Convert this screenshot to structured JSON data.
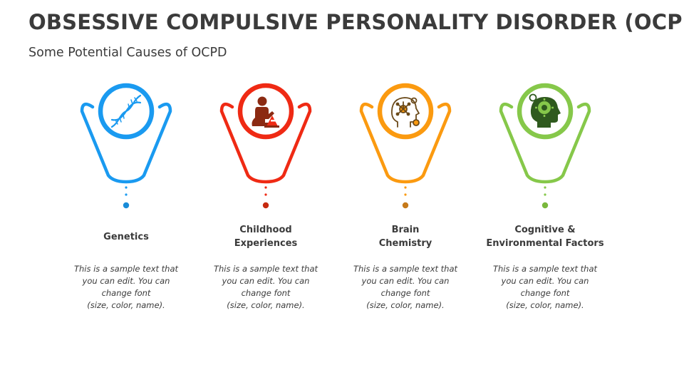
{
  "title": "OBSESSIVE COMPULSIVE PERSONALITY DISORDER (OCPD)",
  "subtitle": "Some Potential Causes of OCPD",
  "cards": [
    {
      "heading": "Genetics",
      "text": "This is a sample text that\nyou can edit. You can\nchange font\n(size, color, name).",
      "color": "#1a9af0",
      "icon": "dna-icon"
    },
    {
      "heading": "Childhood\nExperiences",
      "text": "This is a sample text that\nyou can edit. You can\nchange font\n(size, color, name).",
      "color": "#ef2a14",
      "icon": "child-playing-icon"
    },
    {
      "heading": "Brain\nChemistry",
      "text": "This is a sample text that\nyou can edit. You can\nchange font\n(size, color, name).",
      "color": "#fb9a10",
      "icon": "brain-head-icon"
    },
    {
      "heading": "Cognitive &\nEnvironmental Factors",
      "text": "This is a sample text that\nyou can edit. You can\nchange font\n(size, color, name).",
      "color": "#86c84a",
      "icon": "cognitive-head-icon"
    }
  ]
}
